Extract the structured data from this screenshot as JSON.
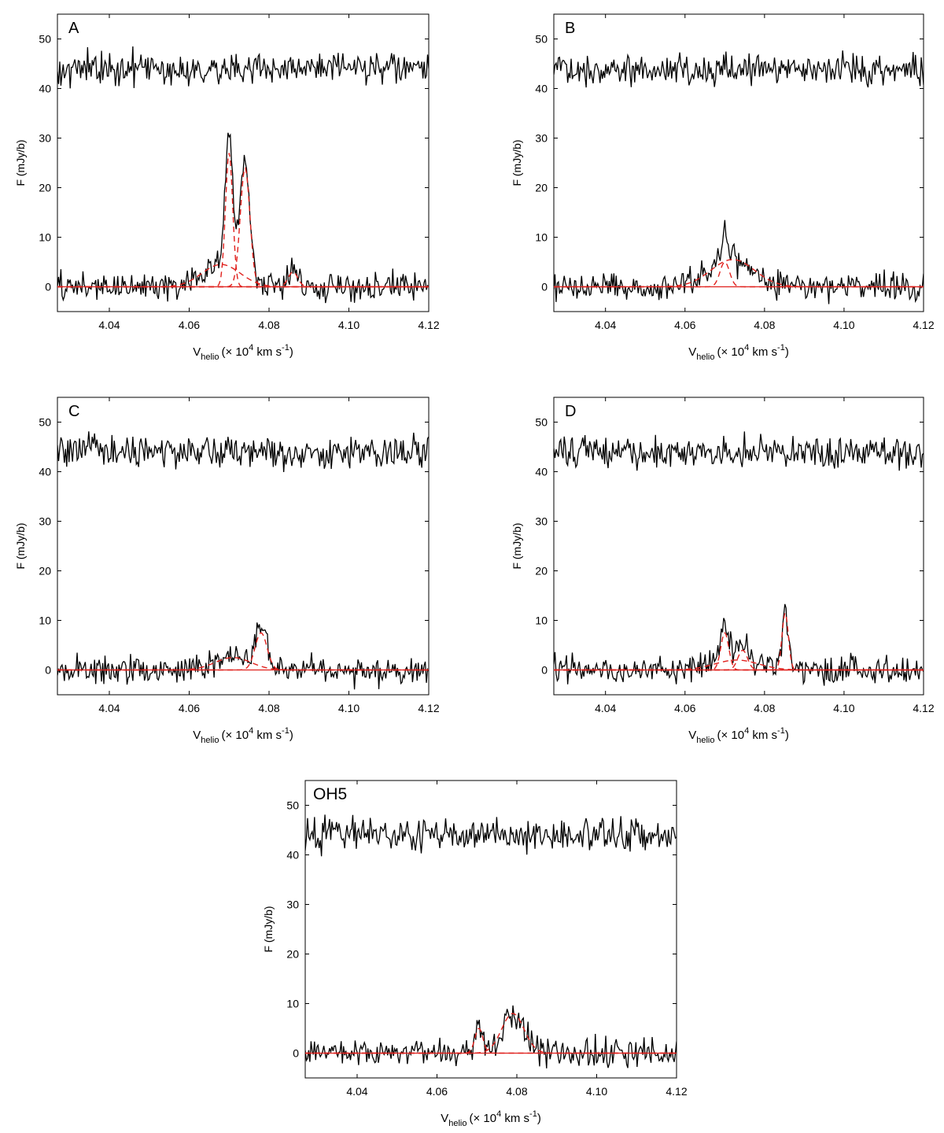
{
  "chart_data": [
    {
      "type": "line",
      "panel_label": "A",
      "xlabel": "V",
      "xlabel_sub": "helio",
      "xlabel_unit": "(× 10",
      "xlabel_exp": "4",
      "xlabel_tail": " km s",
      "xlabel_tail_exp": "-1",
      "xlabel_close": ")",
      "ylabel": "F  (mJy/b)",
      "xlim": [
        4.027,
        4.12
      ],
      "ylim": [
        -5,
        55
      ],
      "xticks": [
        "4.04",
        "4.06",
        "4.08",
        "4.10",
        "4.12"
      ],
      "xtick_values": [
        4.04,
        4.06,
        4.08,
        4.1,
        4.12
      ],
      "yticks": [
        "0",
        "10",
        "20",
        "30",
        "40",
        "50"
      ],
      "ytick_values": [
        0,
        10,
        20,
        30,
        40,
        50
      ],
      "series": [
        {
          "style": "black-solid",
          "description": "residual spectrum (offset)",
          "baseline": 44,
          "noise_amp": 1.6
        },
        {
          "style": "black-solid",
          "description": "observed spectrum",
          "baseline": 0,
          "noise_amp": 1.4,
          "components": [
            {
              "center": 4.07,
              "sigma": 0.0009,
              "amp": 27
            },
            {
              "center": 4.074,
              "sigma": 0.0012,
              "amp": 24
            },
            {
              "center": 4.068,
              "sigma": 0.0048,
              "amp": 4.5
            },
            {
              "center": 4.086,
              "sigma": 0.0012,
              "amp": 3
            }
          ]
        },
        {
          "style": "red-dashed",
          "description": "gaussian components",
          "components": [
            {
              "center": 4.07,
              "sigma": 0.0009,
              "amp": 27
            },
            {
              "center": 4.074,
              "sigma": 0.0012,
              "amp": 24
            },
            {
              "center": 4.068,
              "sigma": 0.0048,
              "amp": 4.5
            },
            {
              "center": 4.086,
              "sigma": 0.0012,
              "amp": 3
            }
          ]
        },
        {
          "style": "red-solid",
          "description": "fit baseline",
          "value": 0
        }
      ]
    },
    {
      "type": "line",
      "panel_label": "B",
      "xlabel": "V",
      "xlabel_sub": "helio",
      "xlabel_unit": "(× 10",
      "xlabel_exp": "4",
      "xlabel_tail": " km s",
      "xlabel_tail_exp": "-1",
      "xlabel_close": ")",
      "ylabel": "F  (mJy/b)",
      "xlim": [
        4.027,
        4.12
      ],
      "ylim": [
        -5,
        55
      ],
      "xticks": [
        "4.04",
        "4.06",
        "4.08",
        "4.10",
        "4.12"
      ],
      "xtick_values": [
        4.04,
        4.06,
        4.08,
        4.1,
        4.12
      ],
      "yticks": [
        "0",
        "10",
        "20",
        "30",
        "40",
        "50"
      ],
      "ytick_values": [
        0,
        10,
        20,
        30,
        40,
        50
      ],
      "series": [
        {
          "style": "black-solid",
          "description": "residual spectrum (offset)",
          "baseline": 44,
          "noise_amp": 1.6
        },
        {
          "style": "black-solid",
          "description": "observed spectrum",
          "baseline": 0,
          "noise_amp": 1.4,
          "components": [
            {
              "center": 4.07,
              "sigma": 0.0012,
              "amp": 5
            },
            {
              "center": 4.072,
              "sigma": 0.0055,
              "amp": 5.5
            }
          ]
        },
        {
          "style": "red-dashed",
          "description": "gaussian components",
          "components": [
            {
              "center": 4.07,
              "sigma": 0.0012,
              "amp": 5
            },
            {
              "center": 4.072,
              "sigma": 0.0055,
              "amp": 5.5
            }
          ]
        },
        {
          "style": "red-solid",
          "description": "fit baseline",
          "value": 0
        }
      ]
    },
    {
      "type": "line",
      "panel_label": "C",
      "xlabel": "V",
      "xlabel_sub": "helio",
      "xlabel_unit": "(× 10",
      "xlabel_exp": "4",
      "xlabel_tail": " km s",
      "xlabel_tail_exp": "-1",
      "xlabel_close": ")",
      "ylabel": "F  (mJy/b)",
      "xlim": [
        4.027,
        4.12
      ],
      "ylim": [
        -5,
        55
      ],
      "xticks": [
        "4.04",
        "4.06",
        "4.08",
        "4.10",
        "4.12"
      ],
      "xtick_values": [
        4.04,
        4.06,
        4.08,
        4.1,
        4.12
      ],
      "yticks": [
        "0",
        "10",
        "20",
        "30",
        "40",
        "50"
      ],
      "ytick_values": [
        0,
        10,
        20,
        30,
        40,
        50
      ],
      "series": [
        {
          "style": "black-solid",
          "description": "residual spectrum (offset)",
          "baseline": 44,
          "noise_amp": 1.6
        },
        {
          "style": "black-solid",
          "description": "observed spectrum",
          "baseline": 0,
          "noise_amp": 1.4,
          "components": [
            {
              "center": 4.078,
              "sigma": 0.0015,
              "amp": 7.5
            },
            {
              "center": 4.071,
              "sigma": 0.0045,
              "amp": 2.5
            }
          ]
        },
        {
          "style": "red-dashed",
          "description": "gaussian components",
          "components": [
            {
              "center": 4.078,
              "sigma": 0.0015,
              "amp": 7.5
            },
            {
              "center": 4.071,
              "sigma": 0.0045,
              "amp": 2.5
            }
          ]
        },
        {
          "style": "red-solid",
          "description": "fit baseline",
          "value": 0
        }
      ]
    },
    {
      "type": "line",
      "panel_label": "D",
      "xlabel": "V",
      "xlabel_sub": "helio",
      "xlabel_unit": "(× 10",
      "xlabel_exp": "4",
      "xlabel_tail": " km s",
      "xlabel_tail_exp": "-1",
      "xlabel_close": ")",
      "ylabel": "F  (mJy/b)",
      "xlim": [
        4.027,
        4.12
      ],
      "ylim": [
        -5,
        55
      ],
      "xticks": [
        "4.04",
        "4.06",
        "4.08",
        "4.10",
        "4.12"
      ],
      "xtick_values": [
        4.04,
        4.06,
        4.08,
        4.1,
        4.12
      ],
      "yticks": [
        "0",
        "10",
        "20",
        "30",
        "40",
        "50"
      ],
      "ytick_values": [
        0,
        10,
        20,
        30,
        40,
        50
      ],
      "series": [
        {
          "style": "black-solid",
          "description": "residual spectrum (offset)",
          "baseline": 44,
          "noise_amp": 1.6
        },
        {
          "style": "black-solid",
          "description": "observed spectrum",
          "baseline": 0,
          "noise_amp": 1.4,
          "components": [
            {
              "center": 4.07,
              "sigma": 0.001,
              "amp": 7.5
            },
            {
              "center": 4.0745,
              "sigma": 0.0012,
              "amp": 4
            },
            {
              "center": 4.0852,
              "sigma": 0.0008,
              "amp": 11.5
            },
            {
              "center": 4.073,
              "sigma": 0.0055,
              "amp": 2
            }
          ]
        },
        {
          "style": "red-dashed",
          "description": "gaussian components",
          "components": [
            {
              "center": 4.07,
              "sigma": 0.001,
              "amp": 7.5
            },
            {
              "center": 4.0745,
              "sigma": 0.0012,
              "amp": 4
            },
            {
              "center": 4.0852,
              "sigma": 0.0008,
              "amp": 11.5
            },
            {
              "center": 4.073,
              "sigma": 0.0055,
              "amp": 2
            }
          ]
        },
        {
          "style": "red-solid",
          "description": "fit baseline",
          "value": 0
        }
      ]
    },
    {
      "type": "line",
      "panel_label": "OH5",
      "xlabel": "V",
      "xlabel_sub": "helio",
      "xlabel_unit": "(× 10",
      "xlabel_exp": "4",
      "xlabel_tail": " km s",
      "xlabel_tail_exp": "-1",
      "xlabel_close": ")",
      "ylabel": "F  (mJy/b)",
      "xlim": [
        4.027,
        4.12
      ],
      "ylim": [
        -5,
        55
      ],
      "xticks": [
        "4.04",
        "4.06",
        "4.08",
        "4.10",
        "4.12"
      ],
      "xtick_values": [
        4.04,
        4.06,
        4.08,
        4.1,
        4.12
      ],
      "yticks": [
        "0",
        "10",
        "20",
        "30",
        "40",
        "50"
      ],
      "ytick_values": [
        0,
        10,
        20,
        30,
        40,
        50
      ],
      "series": [
        {
          "style": "black-solid",
          "description": "residual spectrum (offset)",
          "baseline": 44,
          "noise_amp": 1.6
        },
        {
          "style": "black-solid",
          "description": "observed spectrum",
          "baseline": 0,
          "noise_amp": 1.4,
          "components": [
            {
              "center": 4.0705,
              "sigma": 0.001,
              "amp": 5
            },
            {
              "center": 4.079,
              "sigma": 0.0028,
              "amp": 8
            }
          ]
        },
        {
          "style": "red-dashed",
          "description": "gaussian components",
          "components": [
            {
              "center": 4.0705,
              "sigma": 0.001,
              "amp": 5
            },
            {
              "center": 4.079,
              "sigma": 0.0028,
              "amp": 8
            }
          ]
        },
        {
          "style": "red-solid",
          "description": "fit baseline",
          "value": 0
        }
      ]
    }
  ]
}
